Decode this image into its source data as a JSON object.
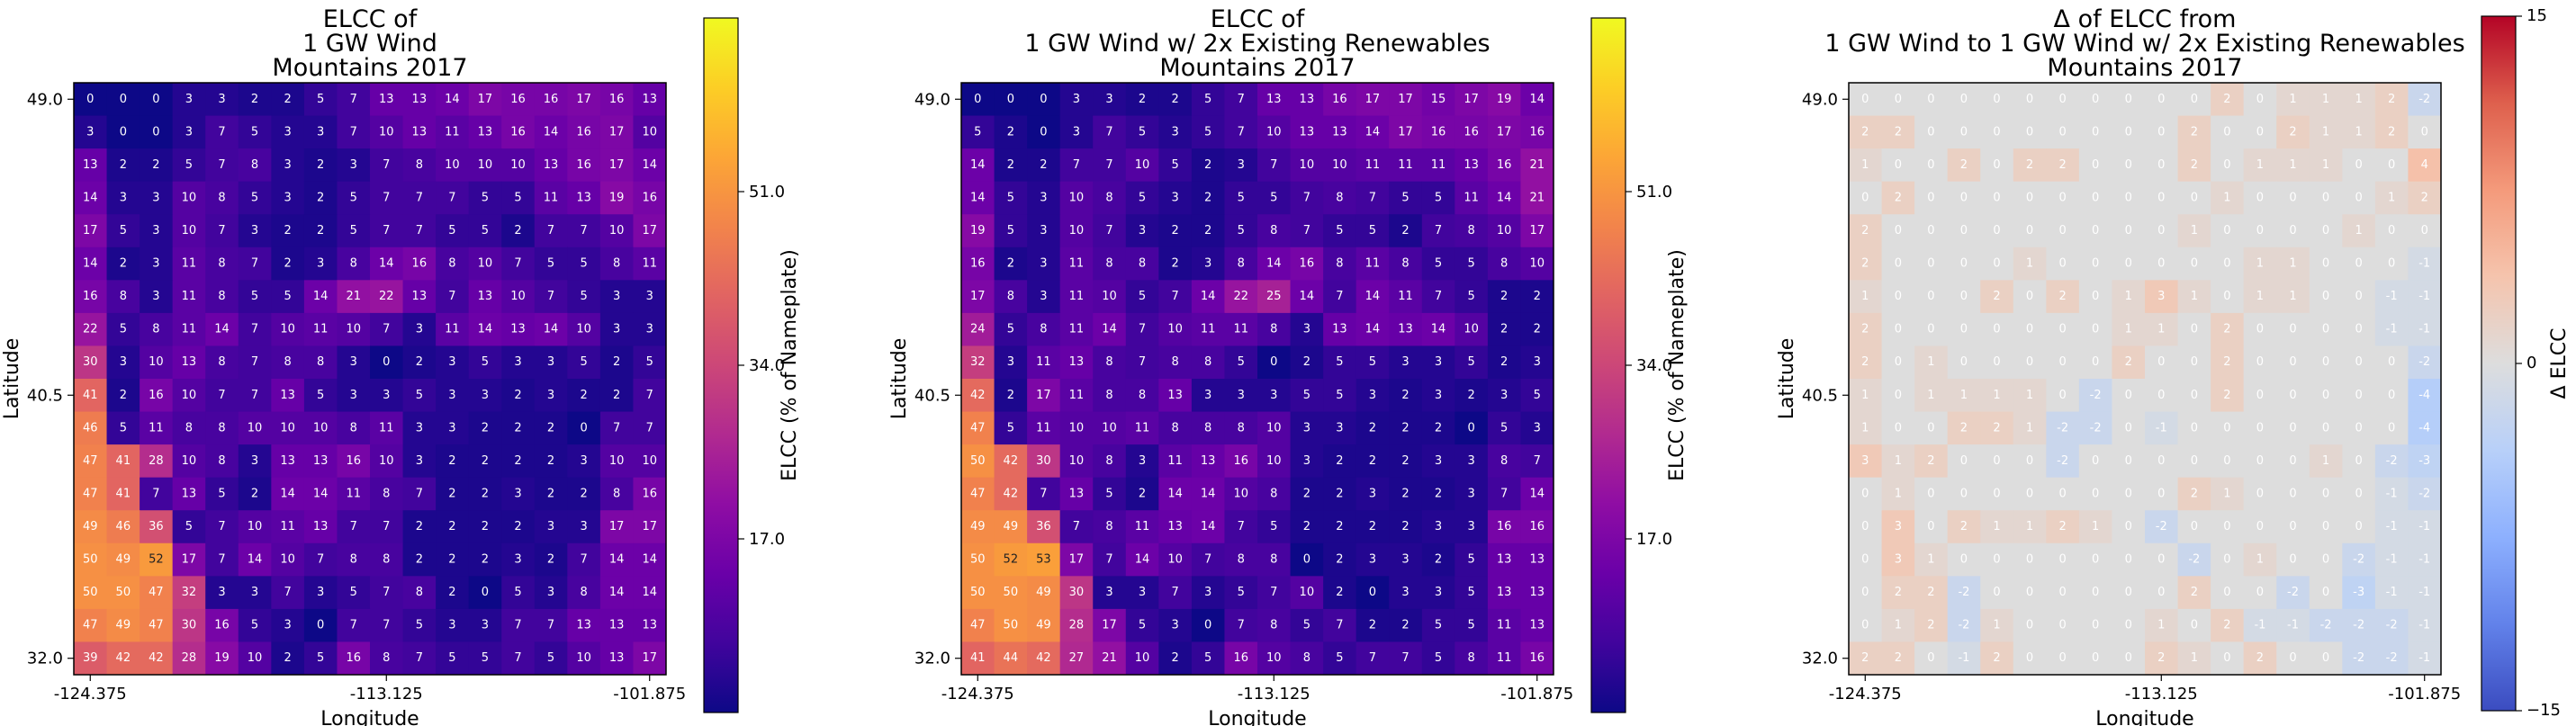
{
  "chart_data": [
    {
      "type": "heatmap",
      "title": [
        "ELCC of",
        "1 GW Wind",
        "Mountains 2017"
      ],
      "xlabel": "Longitude",
      "ylabel": "Latitude",
      "xticks": [
        "-124.375",
        "-113.125",
        "-101.875"
      ],
      "yticks": [
        "49.0",
        "40.5",
        "32.0"
      ],
      "colorbar": {
        "label": "ELCC (% of Nameplate)",
        "ticks": [
          "51.0",
          "34.0",
          "17.0"
        ],
        "tick_values": [
          51,
          34,
          17
        ],
        "range": [
          0,
          68
        ],
        "colormap": "plasma"
      },
      "grid": [
        [
          0,
          0,
          0,
          3,
          3,
          2,
          2,
          5,
          7,
          13,
          13,
          14,
          17,
          16,
          16,
          17,
          16,
          13
        ],
        [
          3,
          0,
          0,
          3,
          7,
          5,
          3,
          3,
          7,
          10,
          13,
          11,
          13,
          16,
          14,
          16,
          17,
          10
        ],
        [
          13,
          2,
          2,
          5,
          7,
          8,
          3,
          2,
          3,
          7,
          8,
          10,
          10,
          10,
          13,
          16,
          17,
          14
        ],
        [
          14,
          3,
          3,
          10,
          8,
          5,
          3,
          2,
          5,
          7,
          7,
          7,
          5,
          5,
          11,
          13,
          19,
          16
        ],
        [
          17,
          5,
          3,
          10,
          7,
          3,
          2,
          2,
          5,
          7,
          7,
          5,
          5,
          2,
          7,
          7,
          10,
          17
        ],
        [
          14,
          2,
          3,
          11,
          8,
          7,
          2,
          3,
          8,
          14,
          16,
          8,
          10,
          7,
          5,
          5,
          8,
          11
        ],
        [
          16,
          8,
          3,
          11,
          8,
          5,
          5,
          14,
          21,
          22,
          13,
          7,
          13,
          10,
          7,
          5,
          3,
          3
        ],
        [
          22,
          5,
          8,
          11,
          14,
          7,
          10,
          11,
          10,
          7,
          3,
          11,
          14,
          13,
          14,
          10,
          3,
          3
        ],
        [
          30,
          3,
          10,
          13,
          8,
          7,
          8,
          8,
          3,
          0,
          2,
          3,
          5,
          3,
          3,
          5,
          2,
          5
        ],
        [
          41,
          2,
          16,
          10,
          7,
          7,
          13,
          5,
          3,
          3,
          5,
          3,
          3,
          2,
          3,
          2,
          2,
          7
        ],
        [
          46,
          5,
          11,
          8,
          8,
          10,
          10,
          10,
          8,
          11,
          3,
          3,
          2,
          2,
          2,
          0,
          7,
          7
        ],
        [
          47,
          41,
          28,
          10,
          8,
          3,
          13,
          13,
          16,
          10,
          3,
          2,
          2,
          2,
          2,
          3,
          10,
          10
        ],
        [
          47,
          41,
          7,
          13,
          5,
          2,
          14,
          14,
          11,
          8,
          7,
          2,
          2,
          3,
          2,
          2,
          8,
          16
        ],
        [
          49,
          46,
          36,
          5,
          7,
          10,
          11,
          13,
          7,
          7,
          2,
          2,
          2,
          2,
          3,
          3,
          17,
          17
        ],
        [
          50,
          49,
          52,
          17,
          7,
          14,
          10,
          7,
          8,
          8,
          2,
          2,
          2,
          3,
          2,
          7,
          14,
          14
        ],
        [
          50,
          50,
          47,
          32,
          3,
          3,
          7,
          3,
          5,
          7,
          8,
          2,
          0,
          5,
          3,
          8,
          14,
          14
        ],
        [
          47,
          49,
          47,
          30,
          16,
          5,
          3,
          0,
          7,
          7,
          5,
          3,
          3,
          7,
          7,
          13,
          13,
          13
        ],
        [
          39,
          42,
          42,
          28,
          19,
          10,
          2,
          5,
          16,
          8,
          7,
          5,
          5,
          7,
          5,
          10,
          13,
          17
        ]
      ]
    },
    {
      "type": "heatmap",
      "title": [
        "ELCC of",
        "1 GW Wind w/ 2x Existing Renewables",
        "Mountains 2017"
      ],
      "xlabel": "Longitude",
      "ylabel": "Latitude",
      "xticks": [
        "-124.375",
        "-113.125",
        "-101.875"
      ],
      "yticks": [
        "49.0",
        "40.5",
        "32.0"
      ],
      "colorbar": {
        "label": "ELCC (% of Nameplate)",
        "ticks": [
          "51.0",
          "34.0",
          "17.0"
        ],
        "tick_values": [
          51,
          34,
          17
        ],
        "range": [
          0,
          68
        ],
        "colormap": "plasma"
      },
      "grid": [
        [
          0,
          0,
          0,
          3,
          3,
          2,
          2,
          5,
          7,
          13,
          13,
          16,
          17,
          17,
          15,
          17,
          19,
          14
        ],
        [
          5,
          2,
          0,
          3,
          7,
          5,
          3,
          5,
          7,
          10,
          13,
          13,
          14,
          17,
          16,
          16,
          17,
          16
        ],
        [
          14,
          2,
          2,
          7,
          7,
          10,
          5,
          2,
          3,
          7,
          10,
          10,
          11,
          11,
          11,
          13,
          16,
          21
        ],
        [
          14,
          5,
          3,
          10,
          8,
          5,
          3,
          2,
          5,
          5,
          7,
          8,
          7,
          5,
          5,
          11,
          14,
          21
        ],
        [
          19,
          5,
          3,
          10,
          7,
          3,
          2,
          2,
          5,
          8,
          7,
          5,
          5,
          2,
          7,
          8,
          10,
          17
        ],
        [
          16,
          2,
          3,
          11,
          8,
          8,
          2,
          3,
          8,
          14,
          16,
          8,
          11,
          8,
          5,
          5,
          8,
          10
        ],
        [
          17,
          8,
          3,
          11,
          10,
          5,
          7,
          14,
          22,
          25,
          14,
          7,
          14,
          11,
          7,
          5,
          2,
          2
        ],
        [
          24,
          5,
          8,
          11,
          14,
          7,
          10,
          11,
          11,
          8,
          3,
          13,
          14,
          13,
          14,
          10,
          2,
          2
        ],
        [
          32,
          3,
          11,
          13,
          8,
          7,
          8,
          8,
          5,
          0,
          2,
          5,
          5,
          3,
          3,
          5,
          2,
          3
        ],
        [
          42,
          2,
          17,
          11,
          8,
          8,
          13,
          3,
          3,
          3,
          5,
          5,
          3,
          2,
          3,
          2,
          3,
          5
        ],
        [
          47,
          5,
          11,
          10,
          10,
          11,
          8,
          8,
          8,
          10,
          3,
          3,
          2,
          2,
          2,
          0,
          5,
          3
        ],
        [
          50,
          42,
          30,
          10,
          8,
          3,
          11,
          13,
          16,
          10,
          3,
          2,
          2,
          2,
          3,
          3,
          8,
          7
        ],
        [
          47,
          42,
          7,
          13,
          5,
          2,
          14,
          14,
          10,
          8,
          2,
          2,
          3,
          2,
          2,
          3,
          7,
          14
        ],
        [
          49,
          49,
          36,
          7,
          8,
          11,
          13,
          14,
          7,
          5,
          2,
          2,
          2,
          2,
          3,
          3,
          16,
          16
        ],
        [
          50,
          52,
          53,
          17,
          7,
          14,
          10,
          7,
          8,
          8,
          0,
          2,
          3,
          3,
          2,
          5,
          13,
          13
        ],
        [
          50,
          50,
          49,
          30,
          3,
          3,
          7,
          3,
          5,
          7,
          10,
          2,
          0,
          3,
          3,
          5,
          13,
          13
        ],
        [
          47,
          50,
          49,
          28,
          17,
          5,
          3,
          0,
          7,
          8,
          5,
          7,
          2,
          2,
          5,
          5,
          11,
          13
        ],
        [
          41,
          44,
          42,
          27,
          21,
          10,
          2,
          5,
          16,
          10,
          8,
          5,
          7,
          7,
          5,
          8,
          11,
          16
        ]
      ]
    },
    {
      "type": "heatmap",
      "title": [
        "Δ of ELCC from",
        "1 GW Wind to 1 GW Wind w/ 2x Existing Renewables",
        "Mountains 2017"
      ],
      "xlabel": "Longitude",
      "ylabel": "Latitude",
      "xticks": [
        "-124.375",
        "-113.125",
        "-101.875"
      ],
      "yticks": [
        "49.0",
        "40.5",
        "32.0"
      ],
      "colorbar": {
        "label": "Δ ELCC",
        "ticks": [
          "15",
          "0",
          "−15"
        ],
        "tick_values": [
          15,
          0,
          -15
        ],
        "range": [
          -15,
          15
        ],
        "colormap": "coolwarm"
      },
      "grid": [
        [
          0,
          0,
          0,
          0,
          0,
          0,
          0,
          0,
          0,
          0,
          0,
          2,
          0,
          1,
          1,
          1,
          2,
          -2
        ],
        [
          2,
          2,
          0,
          0,
          0,
          0,
          0,
          0,
          0,
          0,
          2,
          0,
          0,
          2,
          1,
          1,
          2,
          0
        ],
        [
          1,
          0,
          0,
          2,
          0,
          2,
          2,
          0,
          0,
          0,
          2,
          0,
          1,
          1,
          1,
          0,
          0,
          4
        ],
        [
          0,
          2,
          0,
          0,
          0,
          0,
          0,
          0,
          0,
          0,
          0,
          1,
          0,
          0,
          0,
          0,
          1,
          2
        ],
        [
          2,
          0,
          0,
          0,
          0,
          0,
          0,
          0,
          0,
          0,
          1,
          0,
          0,
          0,
          0,
          1,
          0,
          0
        ],
        [
          2,
          0,
          0,
          0,
          0,
          1,
          0,
          0,
          0,
          0,
          0,
          0,
          1,
          1,
          0,
          0,
          0,
          -1
        ],
        [
          1,
          0,
          0,
          0,
          2,
          0,
          2,
          0,
          1,
          3,
          1,
          0,
          1,
          1,
          0,
          0,
          -1,
          -1
        ],
        [
          2,
          0,
          0,
          0,
          0,
          0,
          0,
          0,
          1,
          1,
          0,
          2,
          0,
          0,
          0,
          0,
          -1,
          -1
        ],
        [
          2,
          0,
          1,
          0,
          0,
          0,
          0,
          0,
          2,
          0,
          0,
          2,
          0,
          0,
          0,
          0,
          0,
          -2
        ],
        [
          1,
          0,
          1,
          1,
          1,
          1,
          0,
          -2,
          0,
          0,
          0,
          2,
          0,
          0,
          0,
          0,
          0,
          -4
        ],
        [
          1,
          0,
          0,
          2,
          2,
          1,
          -2,
          -2,
          0,
          -1,
          0,
          0,
          0,
          0,
          0,
          0,
          0,
          -4
        ],
        [
          3,
          1,
          2,
          0,
          0,
          0,
          -2,
          0,
          0,
          0,
          0,
          0,
          0,
          0,
          1,
          0,
          -2,
          -3
        ],
        [
          0,
          1,
          0,
          0,
          0,
          0,
          0,
          0,
          0,
          0,
          2,
          1,
          0,
          0,
          0,
          0,
          -1,
          -2
        ],
        [
          0,
          3,
          0,
          2,
          1,
          1,
          2,
          1,
          0,
          -2,
          0,
          0,
          0,
          0,
          0,
          0,
          -1,
          -1
        ],
        [
          0,
          3,
          1,
          0,
          0,
          0,
          0,
          0,
          0,
          0,
          -2,
          0,
          1,
          0,
          0,
          -2,
          -1,
          -1
        ],
        [
          0,
          2,
          2,
          -2,
          0,
          0,
          0,
          0,
          0,
          0,
          2,
          0,
          0,
          -2,
          0,
          -3,
          -1,
          -1
        ],
        [
          0,
          1,
          2,
          -2,
          1,
          0,
          0,
          0,
          0,
          1,
          0,
          2,
          -1,
          -1,
          -2,
          -2,
          -2,
          -1
        ],
        [
          2,
          2,
          0,
          -1,
          2,
          0,
          0,
          0,
          0,
          2,
          1,
          0,
          2,
          0,
          0,
          -2,
          -2,
          -1
        ]
      ]
    }
  ]
}
